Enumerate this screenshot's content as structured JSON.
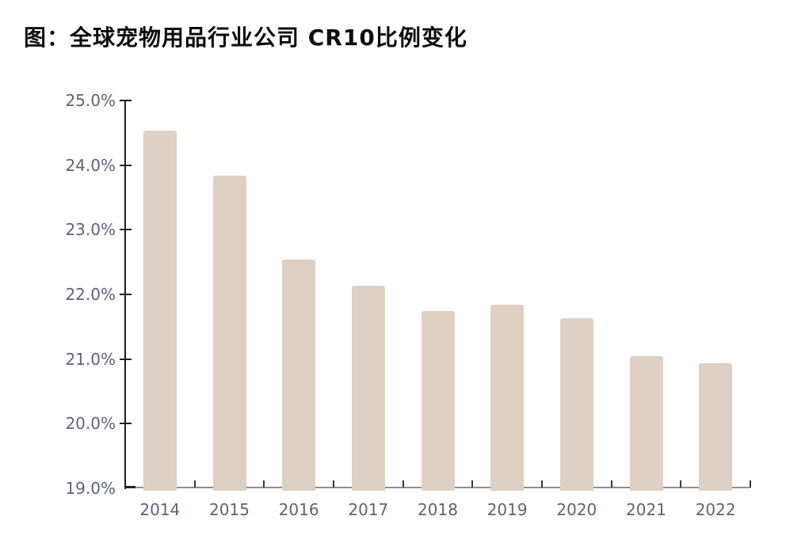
{
  "header": {
    "title": "图：全球宠物用品行业公司 CR10比例变化"
  },
  "chart_data": {
    "type": "bar",
    "title": "图：全球宠物用品行业公司 CR10比例变化",
    "categories": [
      "2014",
      "2015",
      "2016",
      "2017",
      "2018",
      "2019",
      "2020",
      "2021",
      "2022"
    ],
    "values": [
      24.53,
      23.84,
      22.54,
      22.13,
      21.74,
      21.84,
      21.63,
      21.04,
      20.93
    ],
    "unit": "%",
    "xlabel": "",
    "ylabel": "",
    "ylim": [
      19.0,
      25.0
    ],
    "y_tick_step": 1.0,
    "y_ticks": [
      {
        "label": "25.0%",
        "value": 25.0
      },
      {
        "label": "24.0%",
        "value": 24.0
      },
      {
        "label": "23.0%",
        "value": 23.0
      },
      {
        "label": "22.0%",
        "value": 22.0
      },
      {
        "label": "21.0%",
        "value": 21.0
      },
      {
        "label": "20.0%",
        "value": 20.0
      },
      {
        "label": "19.0%",
        "value": 19.0
      }
    ],
    "grid": false,
    "legend": false,
    "colors": {
      "bar_fill": "#ded0c2",
      "y_axis_line": "#1f1f1f",
      "x_axis_line": "#8f8f8f",
      "tick_label": "#5b6575",
      "title": "#0d0d0d",
      "background": "#ffffff"
    }
  }
}
